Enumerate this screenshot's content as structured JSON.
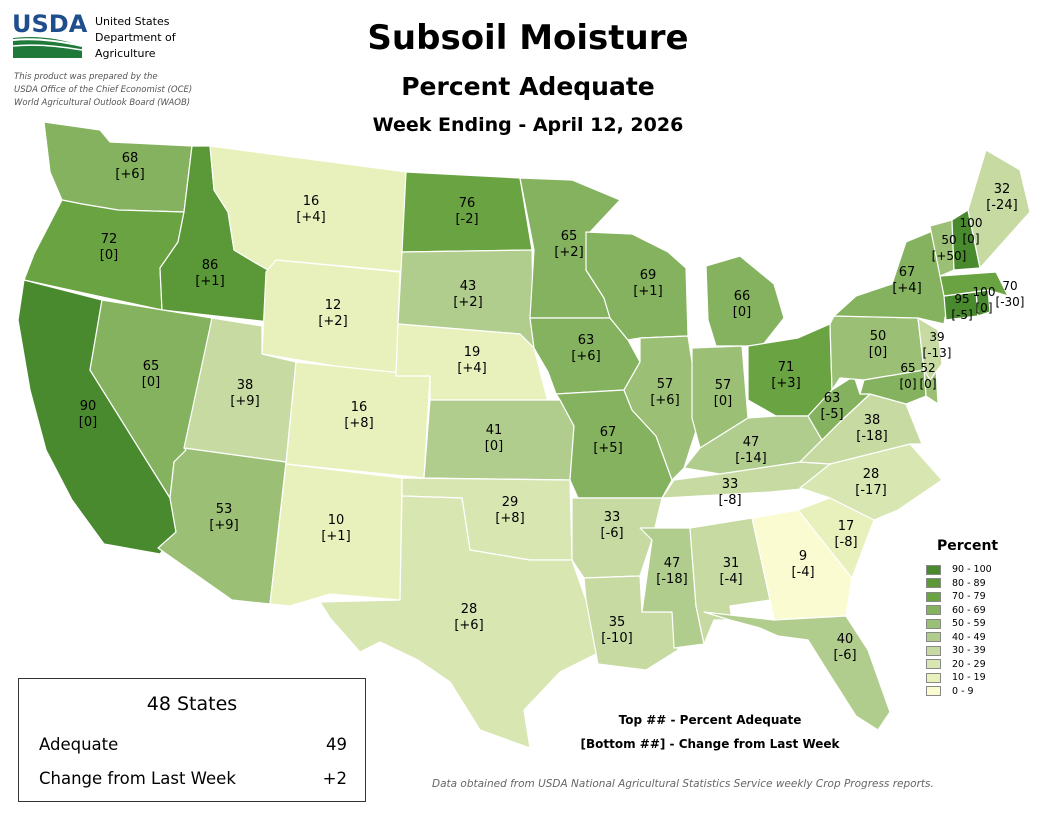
{
  "header": {
    "logo_text": "USDA",
    "agency_lines": [
      "United States",
      "Department of",
      "Agriculture"
    ],
    "prepared_lines": [
      "This product was prepared by the",
      "USDA Office of the Chief Economist (OCE)",
      "World Agricultural Outlook Board (WAOB)"
    ],
    "title": "Subsoil Moisture",
    "subtitle": "Percent Adequate",
    "week": "Week Ending - April 12, 2026"
  },
  "legend": {
    "title": "Percent",
    "bins": [
      {
        "label": "90 - 100",
        "color": "#4a8a2e"
      },
      {
        "label": "80 - 89",
        "color": "#5a9838"
      },
      {
        "label": "70 - 79",
        "color": "#6aa342"
      },
      {
        "label": "60 - 69",
        "color": "#84b25e"
      },
      {
        "label": "50 - 59",
        "color": "#9bc075"
      },
      {
        "label": "40 - 49",
        "color": "#b1cd8d"
      },
      {
        "label": "30 - 39",
        "color": "#c6daa2"
      },
      {
        "label": "20 - 29",
        "color": "#d8e6b2"
      },
      {
        "label": "10 - 19",
        "color": "#e8f0bc"
      },
      {
        "label": "0 - 9",
        "color": "#fbfbd2"
      }
    ]
  },
  "summary": {
    "title": "48 States",
    "rows": [
      {
        "label": "Adequate",
        "value": "49"
      },
      {
        "label": "Change from Last Week",
        "value": "+2"
      }
    ]
  },
  "notes": {
    "top": "Top ## - Percent Adequate",
    "bottom": "[Bottom ##] - Change from Last Week"
  },
  "source": "Data obtained from USDA National Agricultural Statistics Service weekly Crop Progress reports.",
  "states": {
    "WA": {
      "value": "68",
      "change": "[+6]",
      "color": "#84b25e"
    },
    "OR": {
      "value": "72",
      "change": "[0]",
      "color": "#6aa342"
    },
    "CA": {
      "value": "90",
      "change": "[0]",
      "color": "#4a8a2e"
    },
    "ID": {
      "value": "86",
      "change": "[+1]",
      "color": "#5a9838"
    },
    "NV": {
      "value": "65",
      "change": "[0]",
      "color": "#84b25e"
    },
    "MT": {
      "value": "16",
      "change": "[+4]",
      "color": "#e8f0bc"
    },
    "WY": {
      "value": "12",
      "change": "[+2]",
      "color": "#e8f0bc"
    },
    "UT": {
      "value": "38",
      "change": "[+9]",
      "color": "#c6daa2"
    },
    "AZ": {
      "value": "53",
      "change": "[+9]",
      "color": "#9bc075"
    },
    "CO": {
      "value": "16",
      "change": "[+8]",
      "color": "#e8f0bc"
    },
    "NM": {
      "value": "10",
      "change": "[+1]",
      "color": "#e8f0bc"
    },
    "ND": {
      "value": "76",
      "change": "[-2]",
      "color": "#6aa342"
    },
    "SD": {
      "value": "43",
      "change": "[+2]",
      "color": "#b1cd8d"
    },
    "NE": {
      "value": "19",
      "change": "[+4]",
      "color": "#e8f0bc"
    },
    "KS": {
      "value": "41",
      "change": "[0]",
      "color": "#b1cd8d"
    },
    "OK": {
      "value": "29",
      "change": "[+8]",
      "color": "#d8e6b2"
    },
    "TX": {
      "value": "28",
      "change": "[+6]",
      "color": "#d8e6b2"
    },
    "MN": {
      "value": "65",
      "change": "[+2]",
      "color": "#84b25e"
    },
    "IA": {
      "value": "63",
      "change": "[+6]",
      "color": "#84b25e"
    },
    "MO": {
      "value": "67",
      "change": "[+5]",
      "color": "#84b25e"
    },
    "AR": {
      "value": "33",
      "change": "[-6]",
      "color": "#c6daa2"
    },
    "LA": {
      "value": "35",
      "change": "[-10]",
      "color": "#c6daa2"
    },
    "WI": {
      "value": "69",
      "change": "[+1]",
      "color": "#84b25e"
    },
    "IL": {
      "value": "57",
      "change": "[+6]",
      "color": "#9bc075"
    },
    "MI": {
      "value": "66",
      "change": "[0]",
      "color": "#84b25e"
    },
    "IN": {
      "value": "57",
      "change": "[0]",
      "color": "#9bc075"
    },
    "OH": {
      "value": "71",
      "change": "[+3]",
      "color": "#6aa342"
    },
    "KY": {
      "value": "47",
      "change": "[-14]",
      "color": "#b1cd8d"
    },
    "TN": {
      "value": "33",
      "change": "[-8]",
      "color": "#c6daa2"
    },
    "MS": {
      "value": "47",
      "change": "[-18]",
      "color": "#b1cd8d"
    },
    "AL": {
      "value": "31",
      "change": "[-4]",
      "color": "#c6daa2"
    },
    "GA": {
      "value": "9",
      "change": "[-4]",
      "color": "#fbfbd2"
    },
    "FL": {
      "value": "40",
      "change": "[-6]",
      "color": "#b1cd8d"
    },
    "SC": {
      "value": "17",
      "change": "[-8]",
      "color": "#e8f0bc"
    },
    "NC": {
      "value": "28",
      "change": "[-17]",
      "color": "#d8e6b2"
    },
    "VA": {
      "value": "38",
      "change": "[-18]",
      "color": "#c6daa2"
    },
    "WV": {
      "value": "63",
      "change": "[-5]",
      "color": "#84b25e"
    },
    "PA": {
      "value": "50",
      "change": "[0]",
      "color": "#9bc075"
    },
    "MD": {
      "value": "65",
      "change": "[0]",
      "color": "#84b25e"
    },
    "DE": {
      "value": "52",
      "change": "[0]",
      "color": "#9bc075"
    },
    "NJ": {
      "value": "39",
      "change": "[-13]",
      "color": "#c6daa2"
    },
    "NY": {
      "value": "67",
      "change": "[+4]",
      "color": "#84b25e"
    },
    "CT": {
      "value": "95",
      "change": "[-5]",
      "color": "#4a8a2e"
    },
    "RI": {
      "value": "100",
      "change": "[0]",
      "color": "#4a8a2e"
    },
    "MA": {
      "value": "70",
      "change": "[-30]",
      "color": "#6aa342"
    },
    "VT": {
      "value": "50",
      "change": "[+50]",
      "color": "#9bc075"
    },
    "NH": {
      "value": "100",
      "change": "[0]",
      "color": "#4a8a2e"
    },
    "ME": {
      "value": "32",
      "change": "[-24]",
      "color": "#c6daa2"
    }
  }
}
